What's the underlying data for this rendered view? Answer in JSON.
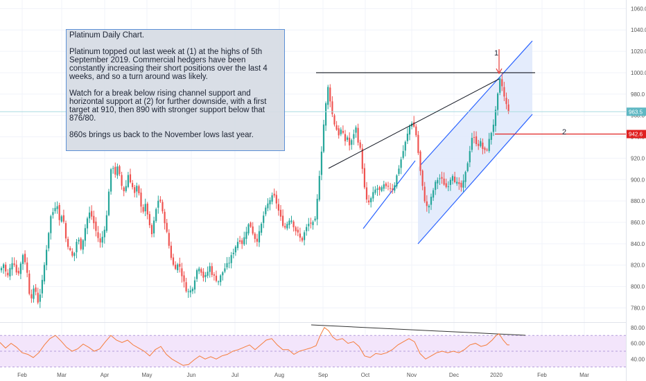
{
  "chart_data": {
    "type": "candlestick",
    "title": "Platinum Daily Chart.",
    "annotation_paragraphs": [
      "Platinum topped out last week at (1) at the highs of 5th September 2019. Commercial hedgers have been constantly increasing their short positions over the last 4 weeks, and so a turn around was likely.",
      "Watch for a break below rising channel support and horizontal support at (2) for further downside, with a first target at 910, then 890 with stronger support below that 876/80.",
      "860s brings us back to the November lows last year."
    ],
    "markers": [
      "1",
      "2"
    ],
    "x_axis_labels": [
      "Feb",
      "Mar",
      "Apr",
      "May",
      "Jun",
      "Jul",
      "Aug",
      "Sep",
      "Oct",
      "Nov",
      "Dec",
      "2020",
      "Feb",
      "Mar"
    ],
    "price_axis": {
      "ticks": [
        "780.0",
        "800.0",
        "820.0",
        "840.0",
        "860.0",
        "880.0",
        "900.0",
        "920.0",
        "940.0",
        "960.0",
        "980.0",
        "1000.0",
        "1020.0",
        "1040.0",
        "1060.0"
      ],
      "range": [
        768,
        1068
      ],
      "last_price": "963.5",
      "support_level": "942.6"
    },
    "rsi_axis": {
      "ticks": [
        "40.00",
        "60.00",
        "80.00"
      ],
      "range": [
        28,
        86
      ],
      "band": [
        30,
        70
      ]
    },
    "price_path": [
      [
        0,
        815
      ],
      [
        6,
        822
      ],
      [
        10,
        807
      ],
      [
        15,
        818
      ],
      [
        19,
        826
      ],
      [
        25,
        810
      ],
      [
        28,
        816
      ],
      [
        33,
        830
      ],
      [
        38,
        820
      ],
      [
        42,
        795
      ],
      [
        46,
        790
      ],
      [
        50,
        800
      ],
      [
        55,
        785
      ],
      [
        60,
        800
      ],
      [
        64,
        820
      ],
      [
        68,
        840
      ],
      [
        73,
        865
      ],
      [
        78,
        872
      ],
      [
        82,
        880
      ],
      [
        86,
        860
      ],
      [
        90,
        870
      ],
      [
        95,
        845
      ],
      [
        100,
        835
      ],
      [
        104,
        828
      ],
      [
        108,
        832
      ],
      [
        112,
        848
      ],
      [
        116,
        835
      ],
      [
        120,
        845
      ],
      [
        125,
        862
      ],
      [
        130,
        870
      ],
      [
        135,
        860
      ],
      [
        140,
        848
      ],
      [
        145,
        840
      ],
      [
        150,
        852
      ],
      [
        155,
        870
      ],
      [
        158,
        900
      ],
      [
        162,
        915
      ],
      [
        166,
        905
      ],
      [
        170,
        912
      ],
      [
        175,
        895
      ],
      [
        180,
        888
      ],
      [
        185,
        905
      ],
      [
        190,
        895
      ],
      [
        195,
        885
      ],
      [
        198,
        895
      ],
      [
        202,
        880
      ],
      [
        206,
        870
      ],
      [
        210,
        876
      ],
      [
        214,
        865
      ],
      [
        218,
        845
      ],
      [
        222,
        860
      ],
      [
        226,
        875
      ],
      [
        230,
        885
      ],
      [
        234,
        870
      ],
      [
        238,
        860
      ],
      [
        242,
        845
      ],
      [
        246,
        830
      ],
      [
        250,
        820
      ],
      [
        254,
        818
      ],
      [
        258,
        822
      ],
      [
        262,
        812
      ],
      [
        266,
        802
      ],
      [
        270,
        795
      ],
      [
        274,
        795
      ],
      [
        278,
        800
      ],
      [
        282,
        810
      ],
      [
        286,
        820
      ],
      [
        290,
        815
      ],
      [
        294,
        808
      ],
      [
        298,
        810
      ],
      [
        302,
        820
      ],
      [
        306,
        812
      ],
      [
        310,
        808
      ],
      [
        315,
        805
      ],
      [
        320,
        812
      ],
      [
        325,
        818
      ],
      [
        330,
        822
      ],
      [
        335,
        830
      ],
      [
        340,
        838
      ],
      [
        345,
        845
      ],
      [
        350,
        840
      ],
      [
        355,
        852
      ],
      [
        360,
        860
      ],
      [
        365,
        850
      ],
      [
        370,
        842
      ],
      [
        375,
        852
      ],
      [
        380,
        866
      ],
      [
        385,
        875
      ],
      [
        390,
        882
      ],
      [
        395,
        885
      ],
      [
        399,
        878
      ],
      [
        403,
        868
      ],
      [
        407,
        860
      ],
      [
        411,
        855
      ],
      [
        415,
        860
      ],
      [
        419,
        865
      ],
      [
        423,
        858
      ],
      [
        427,
        852
      ],
      [
        431,
        848
      ],
      [
        435,
        842
      ],
      [
        439,
        850
      ],
      [
        443,
        856
      ],
      [
        447,
        860
      ],
      [
        451,
        858
      ],
      [
        455,
        862
      ],
      [
        459,
        890
      ],
      [
        462,
        915
      ],
      [
        465,
        935
      ],
      [
        468,
        960
      ],
      [
        471,
        975
      ],
      [
        474,
        990
      ],
      [
        477,
        970
      ],
      [
        481,
        955
      ],
      [
        485,
        948
      ],
      [
        489,
        942
      ],
      [
        493,
        948
      ],
      [
        497,
        935
      ],
      [
        501,
        940
      ],
      [
        505,
        930
      ],
      [
        509,
        940
      ],
      [
        513,
        950
      ],
      [
        517,
        935
      ],
      [
        521,
        925
      ],
      [
        525,
        895
      ],
      [
        529,
        880
      ],
      [
        533,
        878
      ],
      [
        537,
        885
      ],
      [
        541,
        890
      ],
      [
        545,
        892
      ],
      [
        549,
        888
      ],
      [
        553,
        895
      ],
      [
        557,
        892
      ],
      [
        561,
        895
      ],
      [
        565,
        890
      ],
      [
        569,
        895
      ],
      [
        573,
        905
      ],
      [
        577,
        915
      ],
      [
        581,
        925
      ],
      [
        585,
        935
      ],
      [
        589,
        945
      ],
      [
        593,
        955
      ],
      [
        597,
        950
      ],
      [
        601,
        940
      ],
      [
        605,
        915
      ],
      [
        609,
        895
      ],
      [
        613,
        880
      ],
      [
        617,
        872
      ],
      [
        621,
        880
      ],
      [
        625,
        890
      ],
      [
        629,
        898
      ],
      [
        633,
        902
      ],
      [
        637,
        900
      ],
      [
        641,
        896
      ],
      [
        645,
        892
      ],
      [
        649,
        900
      ],
      [
        653,
        905
      ],
      [
        657,
        898
      ],
      [
        661,
        895
      ],
      [
        665,
        892
      ],
      [
        669,
        898
      ],
      [
        673,
        910
      ],
      [
        677,
        925
      ],
      [
        681,
        940
      ],
      [
        685,
        938
      ],
      [
        689,
        932
      ],
      [
        693,
        935
      ],
      [
        697,
        928
      ],
      [
        701,
        925
      ],
      [
        705,
        935
      ],
      [
        709,
        945
      ],
      [
        713,
        955
      ],
      [
        717,
        972
      ],
      [
        720,
        990
      ],
      [
        722,
        995
      ],
      [
        725,
        985
      ],
      [
        729,
        972
      ],
      [
        733,
        966
      ],
      [
        735,
        963.5
      ]
    ],
    "rsi_path": [
      [
        0,
        61
      ],
      [
        8,
        54
      ],
      [
        16,
        60
      ],
      [
        24,
        55
      ],
      [
        32,
        48
      ],
      [
        40,
        46
      ],
      [
        48,
        42
      ],
      [
        56,
        48
      ],
      [
        64,
        58
      ],
      [
        72,
        66
      ],
      [
        80,
        70
      ],
      [
        88,
        63
      ],
      [
        96,
        55
      ],
      [
        104,
        50
      ],
      [
        112,
        53
      ],
      [
        120,
        59
      ],
      [
        128,
        55
      ],
      [
        136,
        50
      ],
      [
        144,
        53
      ],
      [
        152,
        62
      ],
      [
        160,
        70
      ],
      [
        168,
        64
      ],
      [
        176,
        61
      ],
      [
        184,
        64
      ],
      [
        192,
        58
      ],
      [
        200,
        54
      ],
      [
        208,
        50
      ],
      [
        216,
        44
      ],
      [
        224,
        52
      ],
      [
        232,
        56
      ],
      [
        240,
        46
      ],
      [
        248,
        40
      ],
      [
        256,
        36
      ],
      [
        264,
        32
      ],
      [
        272,
        33
      ],
      [
        280,
        39
      ],
      [
        288,
        44
      ],
      [
        296,
        40
      ],
      [
        304,
        43
      ],
      [
        312,
        40
      ],
      [
        320,
        44
      ],
      [
        328,
        46
      ],
      [
        336,
        50
      ],
      [
        344,
        52
      ],
      [
        352,
        55
      ],
      [
        360,
        58
      ],
      [
        368,
        52
      ],
      [
        376,
        58
      ],
      [
        384,
        64
      ],
      [
        392,
        66
      ],
      [
        400,
        58
      ],
      [
        408,
        52
      ],
      [
        416,
        52
      ],
      [
        424,
        46
      ],
      [
        432,
        50
      ],
      [
        440,
        52
      ],
      [
        448,
        54
      ],
      [
        456,
        57
      ],
      [
        462,
        70
      ],
      [
        468,
        80
      ],
      [
        474,
        76
      ],
      [
        480,
        68
      ],
      [
        486,
        64
      ],
      [
        494,
        66
      ],
      [
        502,
        60
      ],
      [
        510,
        62
      ],
      [
        518,
        56
      ],
      [
        526,
        44
      ],
      [
        534,
        42
      ],
      [
        542,
        47
      ],
      [
        550,
        46
      ],
      [
        558,
        48
      ],
      [
        566,
        52
      ],
      [
        574,
        58
      ],
      [
        582,
        62
      ],
      [
        590,
        66
      ],
      [
        598,
        62
      ],
      [
        606,
        47
      ],
      [
        614,
        40
      ],
      [
        622,
        44
      ],
      [
        630,
        48
      ],
      [
        638,
        50
      ],
      [
        646,
        48
      ],
      [
        654,
        50
      ],
      [
        662,
        48
      ],
      [
        670,
        52
      ],
      [
        678,
        58
      ],
      [
        686,
        60
      ],
      [
        694,
        56
      ],
      [
        702,
        58
      ],
      [
        710,
        64
      ],
      [
        716,
        70
      ],
      [
        720,
        72
      ],
      [
        726,
        64
      ],
      [
        732,
        58
      ],
      [
        735,
        58
      ]
    ]
  },
  "colors": {
    "bullish": "#26a69a",
    "bearish": "#ef5350",
    "channel": "#2962ff",
    "channel_fill": "#dfe9fb",
    "support_line": "#e02020",
    "resistance_line": "#131722",
    "price_line": "#a9dbe0",
    "rsi_line": "#f57c3a",
    "rsi_band": "#f3e5fb",
    "text": "#1c2333"
  }
}
